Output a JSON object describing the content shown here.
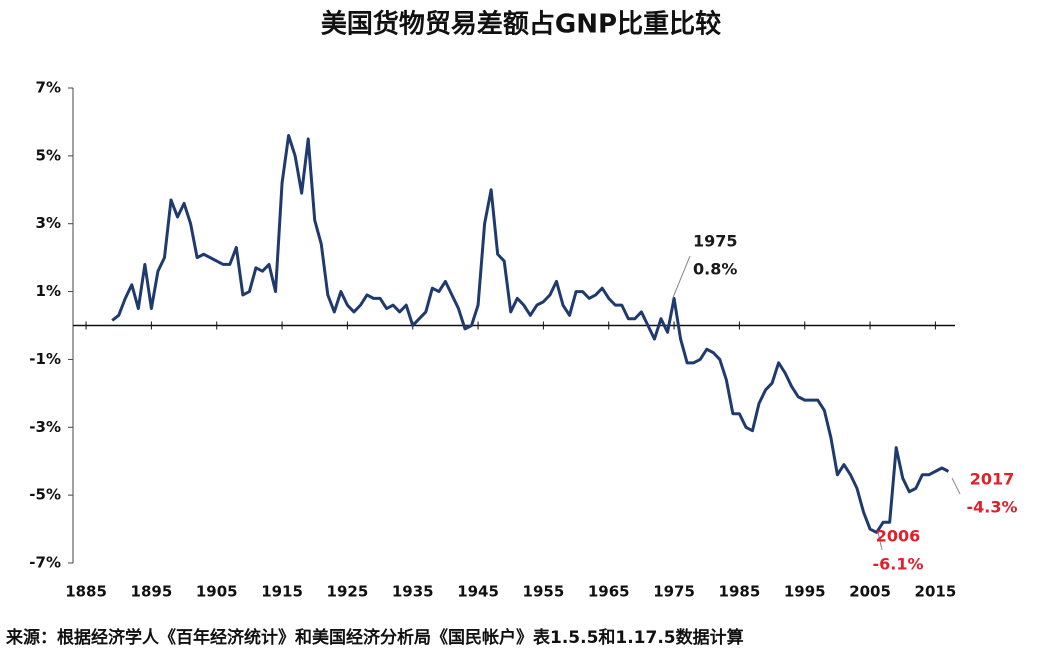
{
  "chart_data": {
    "type": "line",
    "title": "美国货物贸易差额占GNP比重比较",
    "source": "来源：根据经济学人《百年经济统计》和美国经济分析局《国民帐户》表1.5.5和1.17.5数据计算",
    "x": [
      1889,
      1890,
      1891,
      1892,
      1893,
      1894,
      1895,
      1896,
      1897,
      1898,
      1899,
      1900,
      1901,
      1902,
      1903,
      1904,
      1905,
      1906,
      1907,
      1908,
      1909,
      1910,
      1911,
      1912,
      1913,
      1914,
      1915,
      1916,
      1917,
      1918,
      1919,
      1920,
      1921,
      1922,
      1923,
      1924,
      1925,
      1926,
      1927,
      1928,
      1929,
      1930,
      1931,
      1932,
      1933,
      1934,
      1935,
      1936,
      1937,
      1938,
      1939,
      1940,
      1941,
      1942,
      1943,
      1944,
      1945,
      1946,
      1947,
      1948,
      1949,
      1950,
      1951,
      1952,
      1953,
      1954,
      1955,
      1956,
      1957,
      1958,
      1959,
      1960,
      1961,
      1962,
      1963,
      1964,
      1965,
      1966,
      1967,
      1968,
      1969,
      1970,
      1971,
      1972,
      1973,
      1974,
      1975,
      1976,
      1977,
      1978,
      1979,
      1980,
      1981,
      1982,
      1983,
      1984,
      1985,
      1986,
      1987,
      1988,
      1989,
      1990,
      1991,
      1992,
      1993,
      1994,
      1995,
      1996,
      1997,
      1998,
      1999,
      2000,
      2001,
      2002,
      2003,
      2004,
      2005,
      2006,
      2007,
      2008,
      2009,
      2010,
      2011,
      2012,
      2013,
      2014,
      2015,
      2016,
      2017
    ],
    "series": [
      {
        "color": "#1f3a6e",
        "values": [
          0.15,
          0.3,
          0.8,
          1.2,
          0.5,
          1.8,
          0.5,
          1.6,
          2.0,
          3.7,
          3.2,
          3.6,
          3.0,
          2.0,
          2.1,
          2.0,
          1.9,
          1.8,
          1.8,
          2.3,
          0.9,
          1.0,
          1.7,
          1.6,
          1.8,
          1.0,
          4.2,
          5.6,
          5.0,
          3.9,
          5.5,
          3.1,
          2.4,
          0.9,
          0.4,
          1.0,
          0.6,
          0.4,
          0.6,
          0.9,
          0.8,
          0.8,
          0.5,
          0.6,
          0.4,
          0.6,
          0.0,
          0.2,
          0.4,
          1.1,
          1.0,
          1.3,
          0.9,
          0.5,
          -0.1,
          0.0,
          0.6,
          3.0,
          4.0,
          2.1,
          1.9,
          0.4,
          0.8,
          0.6,
          0.3,
          0.6,
          0.7,
          0.9,
          1.3,
          0.6,
          0.3,
          1.0,
          1.0,
          0.8,
          0.9,
          1.1,
          0.8,
          0.6,
          0.6,
          0.2,
          0.2,
          0.4,
          0.0,
          -0.4,
          0.2,
          -0.2,
          0.8,
          -0.4,
          -1.1,
          -1.1,
          -1.0,
          -0.7,
          -0.8,
          -1.0,
          -1.6,
          -2.6,
          -2.6,
          -3.0,
          -3.1,
          -2.3,
          -1.9,
          -1.7,
          -1.1,
          -1.4,
          -1.8,
          -2.1,
          -2.2,
          -2.2,
          -2.2,
          -2.5,
          -3.3,
          -4.4,
          -4.1,
          -4.4,
          -4.8,
          -5.5,
          -6.0,
          -6.1,
          -5.8,
          -5.8,
          -3.6,
          -4.5,
          -4.9,
          -4.8,
          -4.4,
          -4.4,
          -4.3,
          -4.2,
          -4.3
        ]
      }
    ],
    "xlim": [
      1883,
      2018
    ],
    "xticks": [
      1885,
      1895,
      1905,
      1915,
      1925,
      1935,
      1945,
      1955,
      1965,
      1975,
      1985,
      1995,
      2005,
      2015
    ],
    "ylim": [
      -7,
      7
    ],
    "yticks": [
      {
        "value": 7,
        "label": "7%"
      },
      {
        "value": 5,
        "label": "5%"
      },
      {
        "value": 3,
        "label": "3%"
      },
      {
        "value": 1,
        "label": "1%"
      },
      {
        "value": -1,
        "label": "-1%"
      },
      {
        "value": -3,
        "label": "-3%"
      },
      {
        "value": -5,
        "label": "-5%"
      },
      {
        "value": -7,
        "label": "-7%"
      }
    ],
    "annotations": [
      {
        "year": "1975",
        "value": "0.8%",
        "color": "#1a1a1a"
      },
      {
        "year": "2006",
        "value": "-6.1%",
        "color": "#e0202a"
      },
      {
        "year": "2017",
        "value": "-4.3%",
        "color": "#e0202a"
      }
    ]
  }
}
